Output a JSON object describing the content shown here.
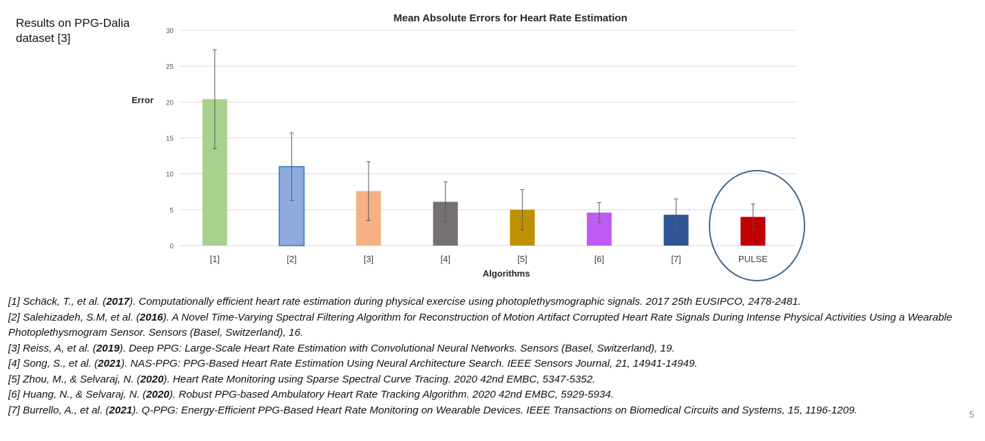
{
  "side_note": "Results on PPG-Dalia dataset [3]",
  "chart_data": {
    "type": "bar",
    "title": "Mean Absolute Errors for Heart Rate Estimation",
    "xlabel": "Algorithms",
    "ylabel": "Error",
    "ylim": [
      0,
      30
    ],
    "yticks": [
      0,
      5,
      10,
      15,
      20,
      25,
      30
    ],
    "grid": true,
    "categories": [
      "[1]",
      "[2]",
      "[3]",
      "[4]",
      "[5]",
      "[6]",
      "[7]",
      "PULSE"
    ],
    "values": [
      20.4,
      11.0,
      7.6,
      6.1,
      5.0,
      4.6,
      4.3,
      4.0
    ],
    "error_bars": [
      6.9,
      4.7,
      4.1,
      2.8,
      2.8,
      1.4,
      2.2,
      1.8
    ],
    "colors": [
      "#a9d18e",
      "#8faadc",
      "#f4b183",
      "#767171",
      "#bf9000",
      "#bf5cf5",
      "#2f5597",
      "#c00000"
    ],
    "highlight": "PULSE",
    "highlight_color": "#41668c"
  },
  "references": [
    {
      "pre": "[1] Schäck, T., et al. (",
      "year": "2017",
      "post": "). Computationally efficient heart rate estimation during physical exercise using photoplethysmographic signals. 2017 25th EUSIPCO, 2478-2481."
    },
    {
      "pre": "[2] Salehizadeh, S.M, et al. (",
      "year": "2016",
      "post": "). A Novel Time-Varying Spectral Filtering Algorithm for Reconstruction of Motion Artifact Corrupted Heart Rate Signals During Intense Physical Activities Using a Wearable Photoplethysmogram Sensor. Sensors (Basel, Switzerland), 16."
    },
    {
      "pre": "[3] Reiss, A, et al. (",
      "year": "2019",
      "post": "). Deep PPG: Large-Scale Heart Rate Estimation with Convolutional Neural Networks. Sensors (Basel, Switzerland), 19."
    },
    {
      "pre": "[4] Song, S., et al.  (",
      "year": "2021",
      "post": "). NAS-PPG: PPG-Based Heart Rate Estimation Using Neural Architecture Search. IEEE Sensors Journal, 21, 14941-14949."
    },
    {
      "pre": "[5] Zhou, M., & Selvaraj, N. (",
      "year": "2020",
      "post": "). Heart Rate Monitoring using Sparse Spectral Curve Tracing. 2020 42nd EMBC, 5347-5352."
    },
    {
      "pre": "[6] Huang, N., & Selvaraj, N. (",
      "year": "2020",
      "post": "). Robust PPG-based Ambulatory Heart Rate Tracking Algorithm. 2020 42nd EMBC, 5929-5934."
    },
    {
      "pre": "[7] Burrello, A., et al. (",
      "year": "2021",
      "post": "). Q-PPG: Energy-Efficient PPG-Based Heart Rate Monitoring on Wearable Devices. IEEE Transactions on Biomedical Circuits and Systems, 15, 1196-1209."
    }
  ],
  "page_number": "5"
}
